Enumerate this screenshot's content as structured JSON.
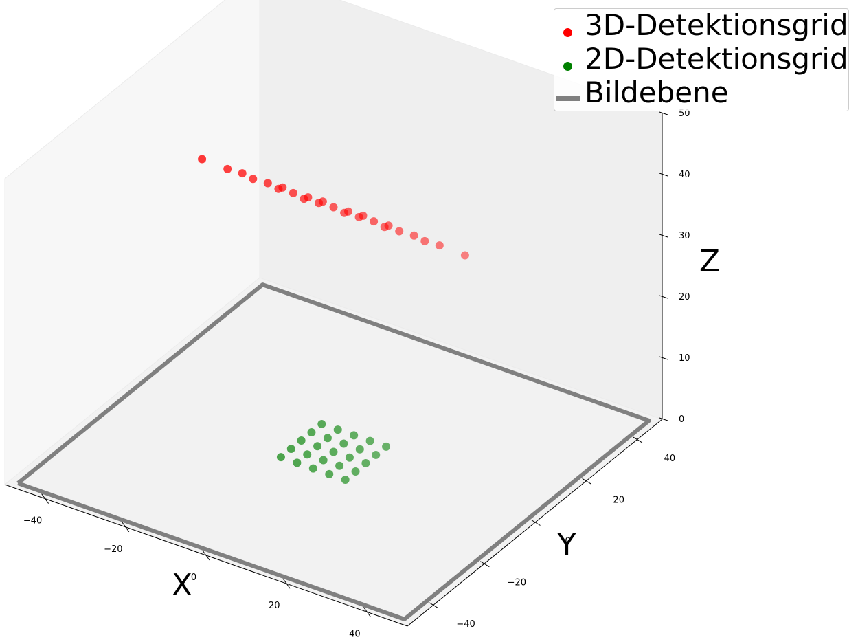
{
  "chart_data": {
    "type": "scatter3d",
    "xlabel": "X",
    "ylabel": "Y",
    "zlabel": "Z",
    "xlim": [
      -50,
      50
    ],
    "ylim": [
      -50,
      50
    ],
    "zlim": [
      0,
      50
    ],
    "x_ticks": [
      -40,
      -20,
      0,
      20,
      40
    ],
    "y_ticks": [
      -40,
      -20,
      0,
      20,
      40
    ],
    "z_ticks": [
      0,
      10,
      20,
      30,
      40,
      50
    ],
    "x_tick_labels": [
      "−40",
      "−20",
      "0",
      "20",
      "40"
    ],
    "y_tick_labels": [
      "−40",
      "−20",
      "0",
      "20",
      "40"
    ],
    "z_tick_labels": [
      "0",
      "10",
      "20",
      "30",
      "40",
      "50"
    ],
    "legend_position": "top-right",
    "series": [
      {
        "name": "3D-Detektionsgrid",
        "kind": "scatter",
        "color": "#ff0000",
        "points": [
          {
            "x": -20,
            "y": -20,
            "z": 50
          },
          {
            "x": -10,
            "y": -20,
            "z": 50
          },
          {
            "x": 0,
            "y": -20,
            "z": 50
          },
          {
            "x": 10,
            "y": -20,
            "z": 50
          },
          {
            "x": 20,
            "y": -20,
            "z": 50
          },
          {
            "x": -20,
            "y": -10,
            "z": 45
          },
          {
            "x": -10,
            "y": -10,
            "z": 45
          },
          {
            "x": 0,
            "y": -10,
            "z": 45
          },
          {
            "x": 10,
            "y": -10,
            "z": 45
          },
          {
            "x": 20,
            "y": -10,
            "z": 45
          },
          {
            "x": -20,
            "y": 0,
            "z": 40
          },
          {
            "x": -10,
            "y": 0,
            "z": 40
          },
          {
            "x": 0,
            "y": 0,
            "z": 40
          },
          {
            "x": 10,
            "y": 0,
            "z": 40
          },
          {
            "x": 20,
            "y": 0,
            "z": 40
          },
          {
            "x": -20,
            "y": 10,
            "z": 35
          },
          {
            "x": -10,
            "y": 10,
            "z": 35
          },
          {
            "x": 0,
            "y": 10,
            "z": 35
          },
          {
            "x": 10,
            "y": 10,
            "z": 35
          },
          {
            "x": 20,
            "y": 10,
            "z": 35
          },
          {
            "x": -20,
            "y": 20,
            "z": 30
          },
          {
            "x": -10,
            "y": 20,
            "z": 30
          },
          {
            "x": 0,
            "y": 20,
            "z": 30
          },
          {
            "x": 10,
            "y": 20,
            "z": 30
          },
          {
            "x": 20,
            "y": 20,
            "z": 30
          }
        ]
      },
      {
        "name": "2D-Detektionsgrid",
        "kind": "scatter",
        "color": "#008000",
        "points": [
          {
            "x": -8,
            "y": -8,
            "z": 0
          },
          {
            "x": -4,
            "y": -8,
            "z": 0
          },
          {
            "x": 0,
            "y": -8,
            "z": 0
          },
          {
            "x": 4,
            "y": -8,
            "z": 0
          },
          {
            "x": 8,
            "y": -8,
            "z": 0
          },
          {
            "x": -8,
            "y": -4,
            "z": 0
          },
          {
            "x": -4,
            "y": -4,
            "z": 0
          },
          {
            "x": 0,
            "y": -4,
            "z": 0
          },
          {
            "x": 4,
            "y": -4,
            "z": 0
          },
          {
            "x": 8,
            "y": -4,
            "z": 0
          },
          {
            "x": -8,
            "y": 0,
            "z": 0
          },
          {
            "x": -4,
            "y": 0,
            "z": 0
          },
          {
            "x": 0,
            "y": 0,
            "z": 0
          },
          {
            "x": 4,
            "y": 0,
            "z": 0
          },
          {
            "x": 8,
            "y": 0,
            "z": 0
          },
          {
            "x": -8,
            "y": 4,
            "z": 0
          },
          {
            "x": -4,
            "y": 4,
            "z": 0
          },
          {
            "x": 0,
            "y": 4,
            "z": 0
          },
          {
            "x": 4,
            "y": 4,
            "z": 0
          },
          {
            "x": 8,
            "y": 4,
            "z": 0
          },
          {
            "x": -8,
            "y": 8,
            "z": 0
          },
          {
            "x": -4,
            "y": 8,
            "z": 0
          },
          {
            "x": 0,
            "y": 8,
            "z": 0
          },
          {
            "x": 4,
            "y": 8,
            "z": 0
          },
          {
            "x": 8,
            "y": 8,
            "z": 0
          }
        ]
      },
      {
        "name": "Bildebene",
        "kind": "line",
        "color": "#808080",
        "points": [
          {
            "x": -48,
            "y": -48,
            "z": 0
          },
          {
            "x": 48,
            "y": -48,
            "z": 0
          },
          {
            "x": 48,
            "y": 48,
            "z": 0
          },
          {
            "x": -48,
            "y": 48,
            "z": 0
          },
          {
            "x": -48,
            "y": -48,
            "z": 0
          }
        ]
      }
    ]
  }
}
